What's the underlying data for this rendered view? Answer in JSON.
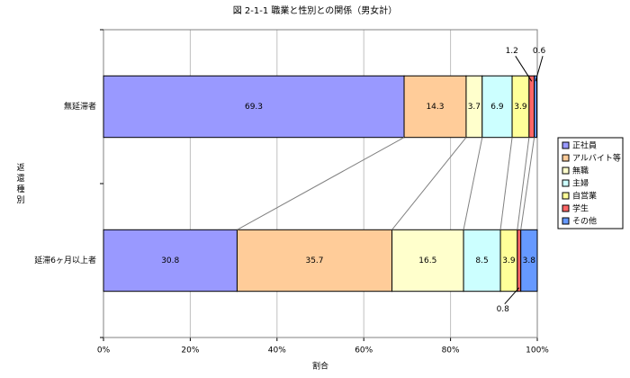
{
  "chart_data": {
    "type": "stacked-bar-horizontal",
    "title": "図 2-1-1  職業と性別との関係（男女計）",
    "x_label": "割合",
    "y_label": "返還種別",
    "categories": [
      "無延滞者",
      "延滞6ヶ月以上者"
    ],
    "series": [
      {
        "name": "正社員",
        "color": "#9999ff",
        "values": [
          69.3,
          30.8
        ]
      },
      {
        "name": "アルバイト等",
        "color": "#ffcc99",
        "values": [
          14.3,
          35.7
        ]
      },
      {
        "name": "無職",
        "color": "#ffffcc",
        "values": [
          3.7,
          16.5
        ]
      },
      {
        "name": "主婦",
        "color": "#ccffff",
        "values": [
          6.9,
          8.5
        ]
      },
      {
        "name": "自営業",
        "color": "#ffff99",
        "values": [
          3.9,
          3.9
        ]
      },
      {
        "name": "学生",
        "color": "#ff6666",
        "values": [
          1.2,
          0.8
        ]
      },
      {
        "name": "その他",
        "color": "#6699ff",
        "values": [
          0.6,
          3.8
        ]
      }
    ],
    "xlim": [
      0,
      100
    ],
    "xticks": [
      {
        "value": 0,
        "label": "0%"
      },
      {
        "value": 20,
        "label": "20%"
      },
      {
        "value": 40,
        "label": "40%"
      },
      {
        "value": 60,
        "label": "60%"
      },
      {
        "value": 80,
        "label": "80%"
      },
      {
        "value": 100,
        "label": "100%"
      }
    ],
    "grid": true,
    "legend": "right"
  }
}
